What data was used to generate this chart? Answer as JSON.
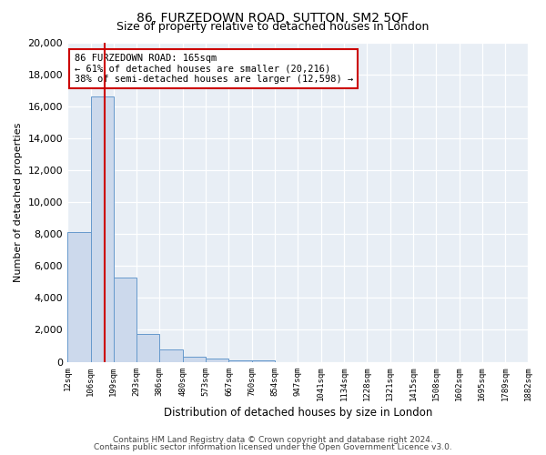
{
  "title": "86, FURZEDOWN ROAD, SUTTON, SM2 5QF",
  "subtitle": "Size of property relative to detached houses in London",
  "xlabel": "Distribution of detached houses by size in London",
  "ylabel": "Number of detached properties",
  "bin_labels": [
    "12sqm",
    "106sqm",
    "199sqm",
    "293sqm",
    "386sqm",
    "480sqm",
    "573sqm",
    "667sqm",
    "760sqm",
    "854sqm",
    "947sqm",
    "1041sqm",
    "1134sqm",
    "1228sqm",
    "1321sqm",
    "1415sqm",
    "1508sqm",
    "1602sqm",
    "1695sqm",
    "1789sqm",
    "1882sqm"
  ],
  "bar_values": [
    8100,
    16600,
    5300,
    1750,
    780,
    290,
    200,
    100,
    100,
    0,
    0,
    0,
    0,
    0,
    0,
    0,
    0,
    0,
    0,
    0
  ],
  "bin_edges": [
    12,
    106,
    199,
    293,
    386,
    480,
    573,
    667,
    760,
    854,
    947,
    1041,
    1134,
    1228,
    1321,
    1415,
    1508,
    1602,
    1695,
    1789,
    1882
  ],
  "bar_color": "#ccd9ec",
  "bar_edge_color": "#6699cc",
  "vline_x": 165,
  "vline_color": "#cc0000",
  "annotation_line1": "86 FURZEDOWN ROAD: 165sqm",
  "annotation_line2": "← 61% of detached houses are smaller (20,216)",
  "annotation_line3": "38% of semi-detached houses are larger (12,598) →",
  "annotation_box_color": "#cc0000",
  "ylim": [
    0,
    20000
  ],
  "yticks": [
    0,
    2000,
    4000,
    6000,
    8000,
    10000,
    12000,
    14000,
    16000,
    18000,
    20000
  ],
  "footer_line1": "Contains HM Land Registry data © Crown copyright and database right 2024.",
  "footer_line2": "Contains public sector information licensed under the Open Government Licence v3.0.",
  "background_color": "#ffffff",
  "plot_bg_color": "#e8eef5"
}
